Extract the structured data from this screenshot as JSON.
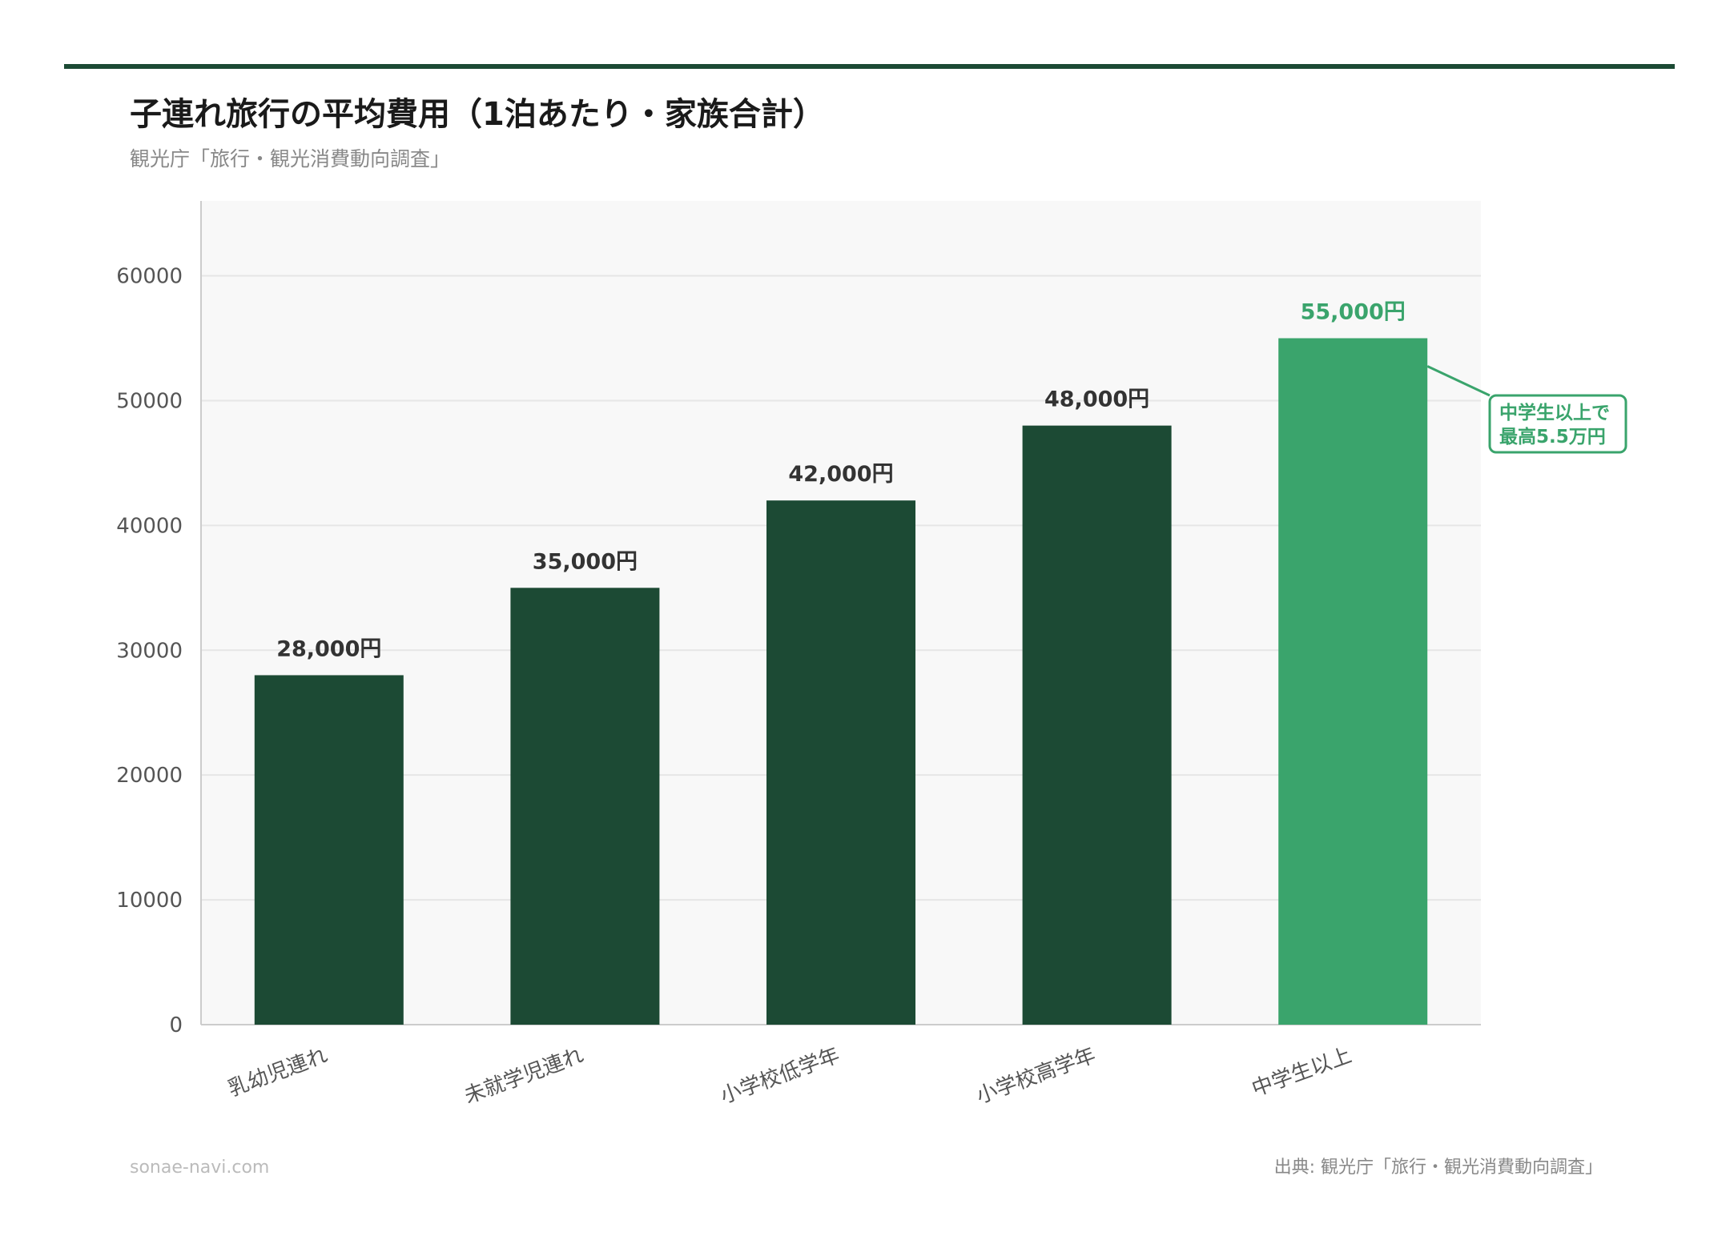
{
  "header": {
    "title": "子連れ旅行の平均費用（1泊あたり・家族合計）",
    "subtitle": "観光庁「旅行・観光消費動向調査」"
  },
  "footer": {
    "site": "sonae-navi.com",
    "source": "出典: 観光庁「旅行・観光消費動向調査」"
  },
  "colors": {
    "accent_line": "#1c4a34",
    "bar": "#1c4a34",
    "highlight": "#3aa46c",
    "plot_bg": "#f8f8f8"
  },
  "chart_data": {
    "type": "bar",
    "title": "子連れ旅行の平均費用（1泊あたり・家族合計）",
    "xlabel": "",
    "ylabel": "",
    "categories": [
      "乳幼児連れ",
      "未就学児連れ",
      "小学校低学年",
      "小学校高学年",
      "中学生以上"
    ],
    "values": [
      28000,
      35000,
      42000,
      48000,
      55000
    ],
    "data_labels": [
      "28,000円",
      "35,000円",
      "42,000円",
      "48,000円",
      "55,000円"
    ],
    "highlight_index": 4,
    "ylim": [
      0,
      66000
    ],
    "yticks": [
      0,
      10000,
      20000,
      30000,
      40000,
      50000,
      60000
    ],
    "grid": true,
    "annotation": {
      "target_index": 4,
      "lines": [
        "中学生以上で",
        "最高5.5万円"
      ]
    }
  }
}
